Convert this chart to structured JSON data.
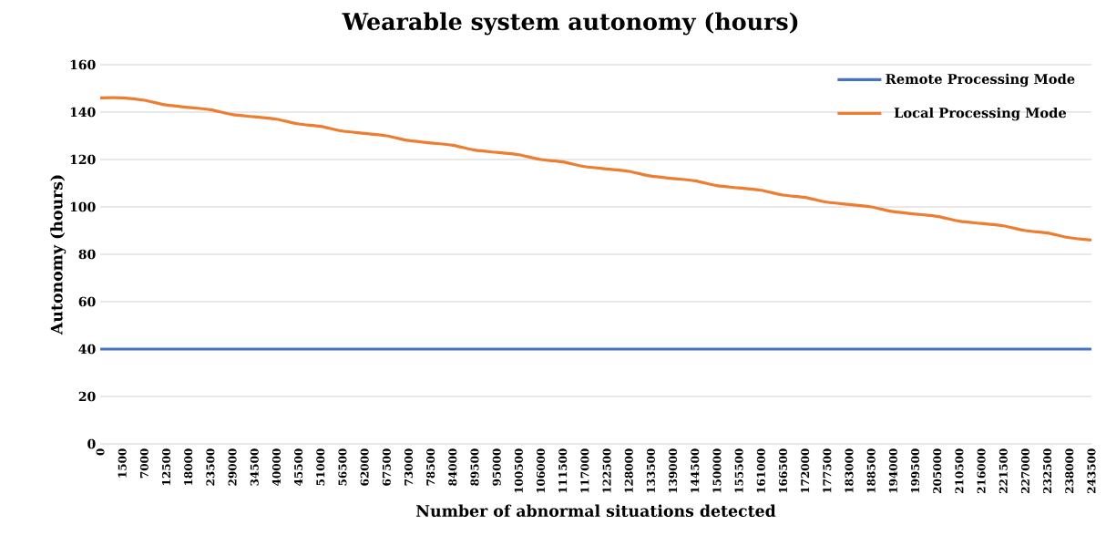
{
  "chart_data": {
    "type": "line",
    "title": "Wearable system autonomy (hours)",
    "xlabel": "Number of abnormal situations detected",
    "ylabel": "Autonomy (hours)",
    "categories": [
      "0",
      "1500",
      "7000",
      "12500",
      "18000",
      "23500",
      "29000",
      "34500",
      "40000",
      "45500",
      "51000",
      "56500",
      "62000",
      "67500",
      "73000",
      "78500",
      "84000",
      "89500",
      "95000",
      "100500",
      "106000",
      "111500",
      "117000",
      "122500",
      "128000",
      "133500",
      "139000",
      "144500",
      "150000",
      "155500",
      "161000",
      "166500",
      "172000",
      "177500",
      "183000",
      "188500",
      "194000",
      "199500",
      "205000",
      "210500",
      "216000",
      "221500",
      "227000",
      "232500",
      "238000",
      "243500"
    ],
    "series": [
      {
        "name": "Remote Processing Mode",
        "color": "#4472c4",
        "values": [
          40,
          40,
          40,
          40,
          40,
          40,
          40,
          40,
          40,
          40,
          40,
          40,
          40,
          40,
          40,
          40,
          40,
          40,
          40,
          40,
          40,
          40,
          40,
          40,
          40,
          40,
          40,
          40,
          40,
          40,
          40,
          40,
          40,
          40,
          40,
          40,
          40,
          40,
          40,
          40,
          40,
          40,
          40,
          40,
          40,
          40
        ]
      },
      {
        "name": "Local Processing Mode",
        "color": "#ed7d31",
        "values": [
          146,
          146,
          145,
          143,
          142,
          141,
          139,
          138,
          137,
          135,
          134,
          132,
          131,
          130,
          128,
          127,
          126,
          124,
          123,
          122,
          120,
          119,
          117,
          116,
          115,
          113,
          112,
          111,
          109,
          108,
          107,
          105,
          104,
          102,
          101,
          100,
          98,
          97,
          96,
          94,
          93,
          92,
          90,
          89,
          87,
          86
        ]
      }
    ],
    "ylim": [
      0,
      160
    ],
    "yticks": [
      0,
      20,
      40,
      60,
      80,
      100,
      120,
      140,
      160
    ],
    "grid": "y",
    "legend": "top right",
    "marker": "none",
    "line_style": "solid"
  }
}
